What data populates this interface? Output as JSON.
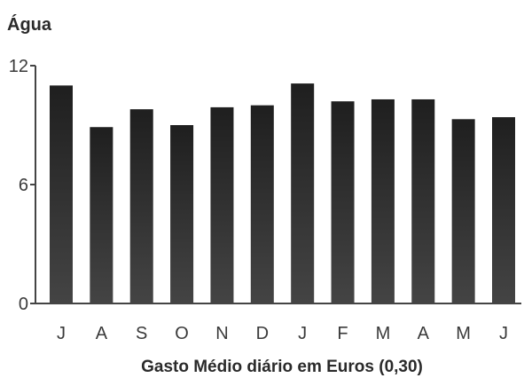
{
  "chart_data": {
    "type": "bar",
    "title": "Água",
    "xlabel": "Gasto Médio diário em Euros (0,30)",
    "ylabel": "",
    "categories": [
      "J",
      "A",
      "S",
      "O",
      "N",
      "D",
      "J",
      "F",
      "M",
      "A",
      "M",
      "J"
    ],
    "values": [
      11.0,
      8.9,
      9.8,
      9.0,
      9.9,
      10.0,
      11.1,
      10.2,
      10.3,
      10.3,
      9.3,
      9.4
    ],
    "yticks": [
      "0",
      "6",
      "12"
    ],
    "ylim": [
      0,
      12
    ],
    "grid": false,
    "legend": "none",
    "bar_color": "#2b2b2b"
  }
}
